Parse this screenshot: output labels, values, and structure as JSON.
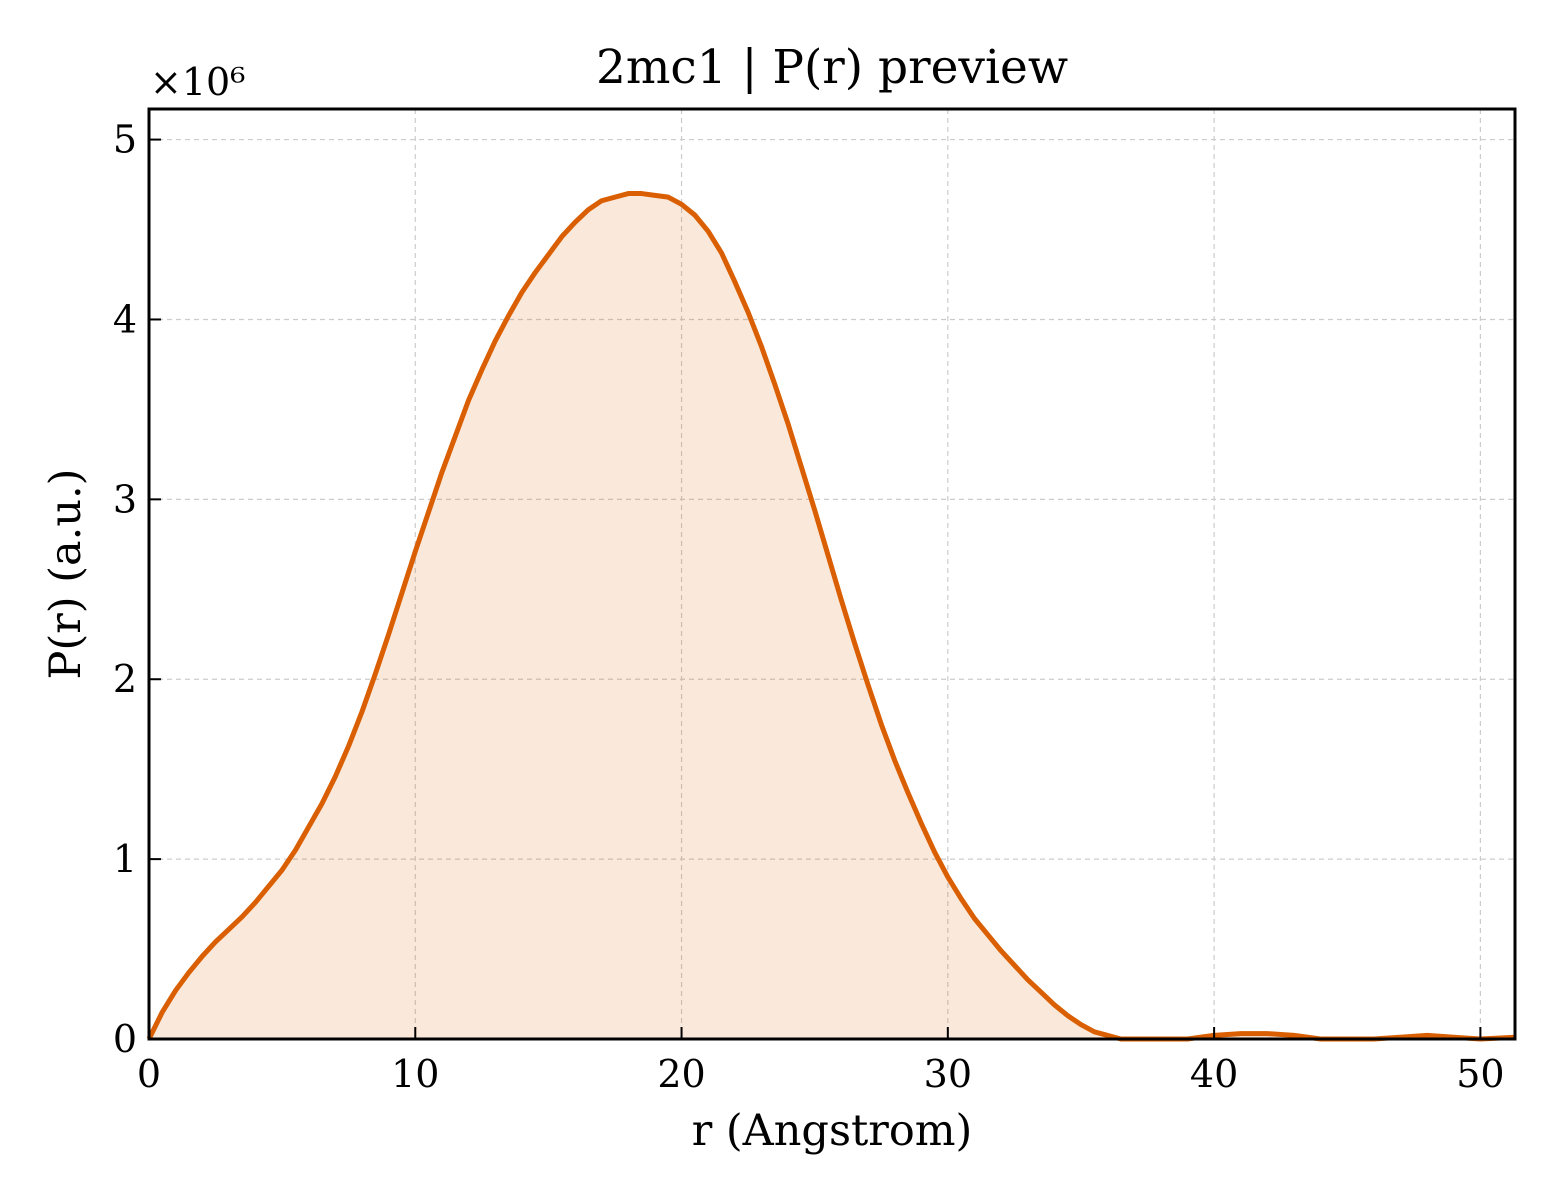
{
  "chart_data": {
    "type": "area",
    "title": "2mc1 | P(r) preview",
    "xlabel": "r (Angstrom)",
    "ylabel": "P(r) (a.u.)",
    "y_multiplier_label": "×10⁶",
    "y_scale": 1000000,
    "xlim": [
      0,
      51.3
    ],
    "ylim": [
      0,
      5.17
    ],
    "xticks": [
      0,
      10,
      20,
      30,
      40,
      50
    ],
    "yticks": [
      0,
      1,
      2,
      3,
      4,
      5
    ],
    "grid": true,
    "colors": {
      "line": "#d95f02",
      "fill": "#d95f02",
      "fill_opacity": 0.14,
      "grid": "#cccccc"
    },
    "series": [
      {
        "x": [
          0,
          0.5,
          1,
          1.5,
          2,
          2.5,
          3,
          3.5,
          4,
          4.5,
          5,
          5.5,
          6,
          6.5,
          7,
          7.5,
          8,
          8.5,
          9,
          9.5,
          10,
          10.5,
          11,
          11.5,
          12,
          12.5,
          13,
          13.5,
          14,
          14.5,
          15,
          15.5,
          16,
          16.5,
          17,
          17.5,
          18,
          18.5,
          19,
          19.5,
          20,
          20.5,
          21,
          21.5,
          22,
          22.5,
          23,
          23.5,
          24,
          24.5,
          25,
          25.5,
          26,
          26.5,
          27,
          27.5,
          28,
          28.5,
          29,
          29.5,
          30,
          30.5,
          31,
          31.5,
          32,
          32.5,
          33,
          33.5,
          34,
          34.5,
          35,
          35.5,
          36,
          36.5,
          37,
          37.5,
          38,
          39,
          40,
          41,
          42,
          43,
          44,
          45,
          46,
          47,
          48,
          49,
          50,
          51.3
        ],
        "y": [
          0.0,
          0.15,
          0.27,
          0.37,
          0.46,
          0.54,
          0.61,
          0.68,
          0.76,
          0.85,
          0.94,
          1.05,
          1.18,
          1.31,
          1.46,
          1.63,
          1.82,
          2.03,
          2.25,
          2.48,
          2.71,
          2.93,
          3.15,
          3.35,
          3.55,
          3.72,
          3.88,
          4.02,
          4.15,
          4.26,
          4.36,
          4.46,
          4.54,
          4.61,
          4.66,
          4.68,
          4.7,
          4.7,
          4.69,
          4.68,
          4.64,
          4.58,
          4.49,
          4.37,
          4.21,
          4.04,
          3.85,
          3.64,
          3.42,
          3.18,
          2.94,
          2.69,
          2.44,
          2.2,
          1.97,
          1.75,
          1.55,
          1.37,
          1.2,
          1.04,
          0.9,
          0.78,
          0.67,
          0.58,
          0.49,
          0.41,
          0.33,
          0.26,
          0.19,
          0.13,
          0.08,
          0.04,
          0.02,
          0.0,
          0.0,
          0.0,
          0.0,
          0.0,
          0.02,
          0.03,
          0.03,
          0.02,
          0.0,
          0.0,
          0.0,
          0.01,
          0.02,
          0.01,
          0.0,
          0.01
        ]
      }
    ]
  }
}
